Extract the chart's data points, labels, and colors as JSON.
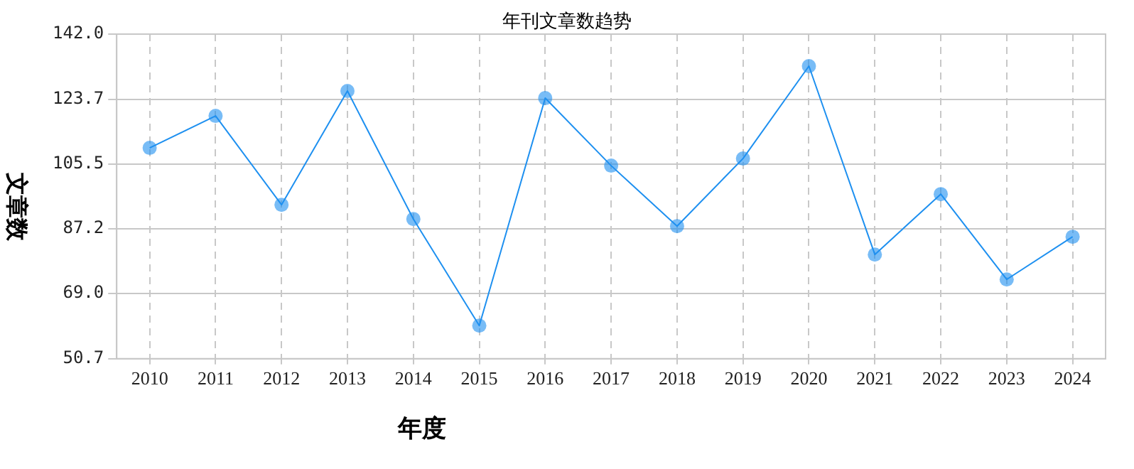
{
  "chart_data": {
    "type": "line",
    "title": "年刊文章数趋势",
    "xlabel": "年度",
    "ylabel": "文章数",
    "categories": [
      "2010",
      "2011",
      "2012",
      "2013",
      "2014",
      "2015",
      "2016",
      "2017",
      "2018",
      "2019",
      "2020",
      "2021",
      "2022",
      "2023",
      "2024"
    ],
    "series": [
      {
        "color": "#1e90f0",
        "values": [
          110,
          119,
          94,
          126,
          90,
          60,
          124,
          105,
          88,
          107,
          133,
          80,
          97,
          73,
          85
        ]
      }
    ],
    "ylim": [
      50.7,
      142.0
    ],
    "yticks": [
      {
        "value": 50.7,
        "label": "50.7"
      },
      {
        "value": 69.0,
        "label": "69.0"
      },
      {
        "value": 87.2,
        "label": "87.2"
      },
      {
        "value": 105.5,
        "label": "105.5"
      },
      {
        "value": 123.7,
        "label": "123.7"
      },
      {
        "value": 142.0,
        "label": "142.0"
      }
    ],
    "grid": true,
    "legend": false,
    "marker": "circle",
    "line_style": "solid"
  }
}
